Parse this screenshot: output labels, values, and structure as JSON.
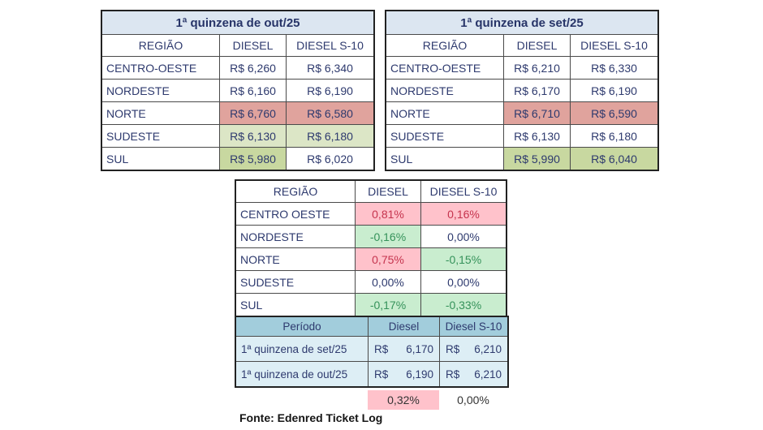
{
  "colors": {
    "text_navy": "#2e3a6e",
    "title_bar_blue": "#dce6f1",
    "highlight_red": "#e0a39d",
    "highlight_green_light": "#dce6c6",
    "highlight_green": "#c8d8a0",
    "variation_pink": "#ffc2cb",
    "variation_mint": "#c9edcf",
    "variation_red_text": "#c5344e",
    "variation_green_text": "#35925a",
    "summary_header_blue": "#a2cddc",
    "summary_row_blue": "#ddeef5"
  },
  "tables": {
    "out25": {
      "title": "1ª quinzena de out/25",
      "headers": [
        "REGIÃO",
        "DIESEL",
        "DIESEL S-10"
      ],
      "rows": [
        {
          "region": "CENTRO-OESTE",
          "diesel": "R$ 6,260",
          "s10": "R$ 6,340"
        },
        {
          "region": "NORDESTE",
          "diesel": "R$ 6,160",
          "s10": "R$ 6,190"
        },
        {
          "region": "NORTE",
          "diesel": "R$ 6,760",
          "s10": "R$ 6,580",
          "diesel_hl": "red",
          "s10_hl": "red"
        },
        {
          "region": "SUDESTE",
          "diesel": "R$ 6,130",
          "s10": "R$ 6,180",
          "diesel_hl": "green-light",
          "s10_hl": "green-light"
        },
        {
          "region": "SUL",
          "diesel": "R$ 5,980",
          "s10": "R$ 6,020",
          "diesel_hl": "green"
        }
      ]
    },
    "set25": {
      "title": "1ª quinzena de set/25",
      "headers": [
        "REGIÃO",
        "DIESEL",
        "DIESEL S-10"
      ],
      "rows": [
        {
          "region": "CENTRO-OESTE",
          "diesel": "R$ 6,210",
          "s10": "R$ 6,330"
        },
        {
          "region": "NORDESTE",
          "diesel": "R$ 6,170",
          "s10": "R$ 6,190"
        },
        {
          "region": "NORTE",
          "diesel": "R$ 6,710",
          "s10": "R$ 6,590",
          "diesel_hl": "red",
          "s10_hl": "red"
        },
        {
          "region": "SUDESTE",
          "diesel": "R$ 6,130",
          "s10": "R$ 6,180"
        },
        {
          "region": "SUL",
          "diesel": "R$ 5,990",
          "s10": "R$ 6,040",
          "diesel_hl": "green",
          "s10_hl": "green"
        }
      ]
    },
    "variation": {
      "headers": [
        "REGIÃO",
        "DIESEL",
        "DIESEL S-10"
      ],
      "rows": [
        {
          "region": "CENTRO OESTE",
          "diesel": "0,81%",
          "s10": "0,16%",
          "diesel_hl": "bad",
          "s10_hl": "bad"
        },
        {
          "region": "NORDESTE",
          "diesel": "-0,16%",
          "s10": "0,00%",
          "diesel_hl": "good"
        },
        {
          "region": "NORTE",
          "diesel": "0,75%",
          "s10": "-0,15%",
          "diesel_hl": "bad",
          "s10_hl": "good"
        },
        {
          "region": "SUDESTE",
          "diesel": "0,00%",
          "s10": "0,00%"
        },
        {
          "region": "SUL",
          "diesel": "-0,17%",
          "s10": "-0,33%",
          "diesel_hl": "good",
          "s10_hl": "good"
        }
      ]
    },
    "summary": {
      "headers": [
        "Período",
        "Diesel",
        "Diesel S-10"
      ],
      "rows": [
        {
          "period": "1ª quinzena de set/25",
          "diesel": {
            "currency": "R$",
            "value": "6,170"
          },
          "s10": {
            "currency": "R$",
            "value": "6,210"
          }
        },
        {
          "period": "1ª quinzena de out/25",
          "diesel": {
            "currency": "R$",
            "value": "6,190"
          },
          "s10": {
            "currency": "R$",
            "value": "6,210"
          }
        }
      ],
      "variation": {
        "diesel": "0,32%",
        "diesel_hl": "bad",
        "s10": "0,00%"
      }
    }
  },
  "footer": {
    "source_note": "Fonte: Edenred Ticket Log"
  }
}
